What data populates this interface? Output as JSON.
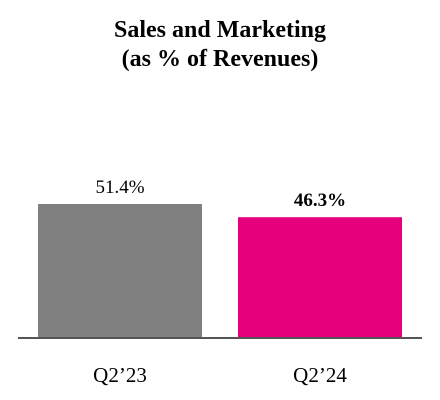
{
  "chart_data": {
    "type": "bar",
    "title_lines": [
      "Sales and Marketing",
      "(as % of Revenues)"
    ],
    "categories": [
      "Q2’23",
      "Q2’24"
    ],
    "values": [
      51.4,
      46.3
    ],
    "value_labels": [
      "51.4%",
      "46.3%"
    ],
    "bold_value_labels": [
      false,
      true
    ],
    "colors": [
      "#808080",
      "#e6007e"
    ],
    "axis_color": "#555555",
    "ylim": [
      0,
      100
    ],
    "grid": false,
    "legend": "none"
  }
}
